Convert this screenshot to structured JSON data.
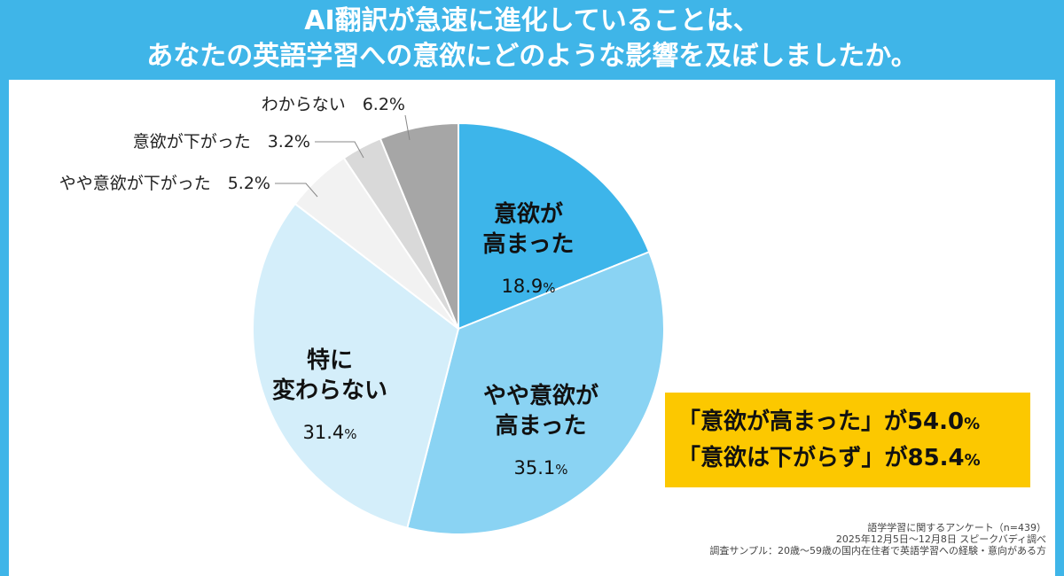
{
  "title": {
    "line1": "AI翻訳が急速に進化していることは、",
    "line2": "あなたの英語学習への意欲にどのような影響を及ぼしましたか。"
  },
  "chart_data": {
    "type": "pie",
    "start": "top",
    "direction": "clockwise",
    "slices": [
      {
        "label": "意欲が高まった",
        "value": 18.9,
        "color": "#3db5ea"
      },
      {
        "label": "やや意欲が高まった",
        "value": 35.1,
        "color": "#8ad3f3"
      },
      {
        "label": "特に変わらない",
        "value": 31.4,
        "color": "#d4eefa"
      },
      {
        "label": "やや意欲が下がった",
        "value": 5.2,
        "color": "#f2f2f2"
      },
      {
        "label": "意欲が下がった",
        "value": 3.2,
        "color": "#d9d9d9"
      },
      {
        "label": "わからない",
        "value": 6.2,
        "color": "#a6a6a6"
      }
    ],
    "inner_labels": [
      {
        "l1": "意欲が",
        "l2": "高まった",
        "pct": "18.9"
      },
      {
        "l1": "やや意欲が",
        "l2": "高まった",
        "pct": "35.1"
      },
      {
        "l1": "特に",
        "l2": "変わらない",
        "pct": "31.4"
      }
    ],
    "outer_labels": [
      {
        "text": "やや意欲が下がった　5.2%"
      },
      {
        "text": "意欲が下がった　3.2%"
      },
      {
        "text": "わからない　6.2%"
      }
    ],
    "unit": "%"
  },
  "highlight": {
    "line1_text": "「意欲が高まった」が54.0",
    "line2_text": "「意欲は下がらず」が85.4",
    "unit": "%"
  },
  "footer": {
    "line1": "語学学習に関するアンケート（n=439）",
    "line2": "2025年12月5日〜12月8日 スピークバディ調べ",
    "line3": "調査サンプル：20歳〜59歳の国内在住者で英語学習への経験・意向がある方"
  }
}
